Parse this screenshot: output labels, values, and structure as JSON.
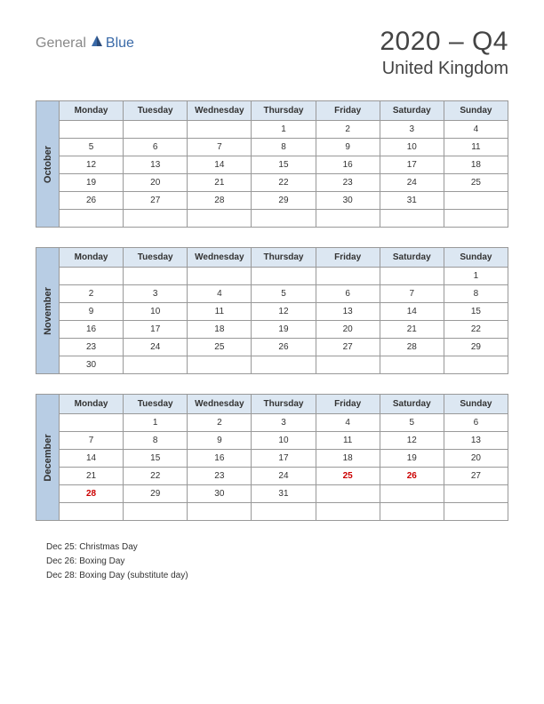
{
  "logo": {
    "general": "General",
    "blue": "Blue"
  },
  "title": "2020 – Q4",
  "subtitle": "United Kingdom",
  "colors": {
    "month_header_bg": "#b8cde4",
    "day_header_bg": "#dce7f2",
    "border": "#999999",
    "holiday_text": "#cc0000",
    "text": "#333333",
    "background": "#ffffff"
  },
  "day_names": [
    "Monday",
    "Tuesday",
    "Wednesday",
    "Thursday",
    "Friday",
    "Saturday",
    "Sunday"
  ],
  "months": [
    {
      "name": "October",
      "weeks": [
        [
          "",
          "",
          "",
          "1",
          "2",
          "3",
          "4"
        ],
        [
          "5",
          "6",
          "7",
          "8",
          "9",
          "10",
          "11"
        ],
        [
          "12",
          "13",
          "14",
          "15",
          "16",
          "17",
          "18"
        ],
        [
          "19",
          "20",
          "21",
          "22",
          "23",
          "24",
          "25"
        ],
        [
          "26",
          "27",
          "28",
          "29",
          "30",
          "31",
          ""
        ],
        [
          "",
          "",
          "",
          "",
          "",
          "",
          ""
        ]
      ],
      "holidays_idx": []
    },
    {
      "name": "November",
      "weeks": [
        [
          "",
          "",
          "",
          "",
          "",
          "",
          "1"
        ],
        [
          "2",
          "3",
          "4",
          "5",
          "6",
          "7",
          "8"
        ],
        [
          "9",
          "10",
          "11",
          "12",
          "13",
          "14",
          "15"
        ],
        [
          "16",
          "17",
          "18",
          "19",
          "20",
          "21",
          "22"
        ],
        [
          "23",
          "24",
          "25",
          "26",
          "27",
          "28",
          "29"
        ],
        [
          "30",
          "",
          "",
          "",
          "",
          "",
          ""
        ]
      ],
      "holidays_idx": []
    },
    {
      "name": "December",
      "weeks": [
        [
          "",
          "1",
          "2",
          "3",
          "4",
          "5",
          "6"
        ],
        [
          "7",
          "8",
          "9",
          "10",
          "11",
          "12",
          "13"
        ],
        [
          "14",
          "15",
          "16",
          "17",
          "18",
          "19",
          "20"
        ],
        [
          "21",
          "22",
          "23",
          "24",
          "25",
          "26",
          "27"
        ],
        [
          "28",
          "29",
          "30",
          "31",
          "",
          "",
          ""
        ],
        [
          "",
          "",
          "",
          "",
          "",
          "",
          ""
        ]
      ],
      "holidays_idx": [
        [
          3,
          4
        ],
        [
          3,
          5
        ],
        [
          4,
          0
        ]
      ]
    }
  ],
  "holiday_list": [
    "Dec 25: Christmas Day",
    "Dec 26: Boxing Day",
    "Dec 28: Boxing Day (substitute day)"
  ]
}
